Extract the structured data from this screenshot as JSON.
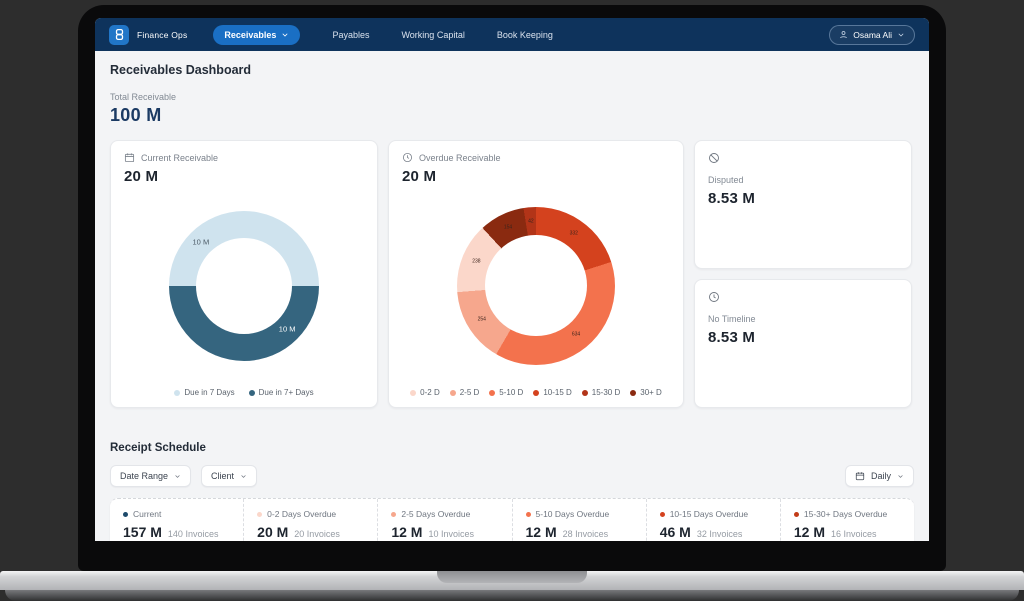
{
  "theme": {
    "nav-bg": "#0e335c",
    "accent-blue": "#1a6fc4",
    "logo-blue": "#2176c7",
    "content-bg": "#f3f4f6",
    "card-border": "#e7e9ec",
    "text-navy": "#1b3a63",
    "text-gray": "#828a94"
  },
  "nav": {
    "brand": "Finance Ops",
    "tabs": [
      {
        "label": "Receivables",
        "active": true
      },
      {
        "label": "Payables",
        "active": false
      },
      {
        "label": "Working Capital",
        "active": false
      },
      {
        "label": "Book Keeping",
        "active": false
      }
    ],
    "user": {
      "name": "Osama Ali"
    }
  },
  "header": {
    "title": "Receivables Dashboard"
  },
  "summary": {
    "label": "Total Receivable",
    "value": "100 M"
  },
  "cards": {
    "current": {
      "title": "Current Receivable",
      "value": "20 M"
    },
    "overdue": {
      "title": "Overdue Receivable",
      "value": "20 M"
    },
    "disputed": {
      "title": "Disputed",
      "value": "8.53 M"
    },
    "no_timeline": {
      "title": "No Timeline",
      "value": "8.53 M"
    }
  },
  "chart_data": [
    {
      "type": "pie",
      "title": "Current Receivable",
      "donut": true,
      "total_label": "20 M",
      "segments": [
        {
          "label": "Due in 7 Days",
          "value": 10,
          "value_label": "10 M",
          "color": "#cfe3ee"
        },
        {
          "label": "Due in 7+ Days",
          "value": 10,
          "value_label": "10 M",
          "color": "#35657f"
        }
      ],
      "legend_position": "bottom"
    },
    {
      "type": "pie",
      "title": "Overdue Receivable",
      "donut": true,
      "total_label": "20 M",
      "segments_order": "clockwise-from-top",
      "segments": [
        {
          "label": "10-15 D",
          "value": 332,
          "color": "#d4421e"
        },
        {
          "label": "5-10 D",
          "value": 634,
          "color": "#f3724d"
        },
        {
          "label": "2-5 D",
          "value": 254,
          "color": "#f6a78d"
        },
        {
          "label": "0-2 D",
          "value": 238,
          "color": "#fbd7ca"
        },
        {
          "label": "30+ D",
          "value": 154,
          "color": "#8a2a10"
        },
        {
          "label": "15-30 D",
          "value": 42,
          "color": "#b23418"
        }
      ],
      "legend": [
        {
          "label": "0-2 D",
          "color": "#fbd7ca"
        },
        {
          "label": "2-5 D",
          "color": "#f6a78d"
        },
        {
          "label": "5-10 D",
          "color": "#f3724d"
        },
        {
          "label": "10-15 D",
          "color": "#d4421e"
        },
        {
          "label": "15-30 D",
          "color": "#b23418"
        },
        {
          "label": "30+ D",
          "color": "#8a2a10"
        }
      ],
      "legend_position": "bottom"
    }
  ],
  "receipt_schedule": {
    "title": "Receipt Schedule",
    "filters": [
      {
        "label": "Date Range"
      },
      {
        "label": "Client"
      }
    ],
    "period_select": "Daily",
    "stats": [
      {
        "label": "Current",
        "value": "157 M",
        "invoices": "140 Invoices",
        "color": "#1d4a6b"
      },
      {
        "label": "0-2 Days Overdue",
        "value": "20 M",
        "invoices": "20 Invoices",
        "color": "#fbd7ca"
      },
      {
        "label": "2-5 Days Overdue",
        "value": "12 M",
        "invoices": "10 Invoices",
        "color": "#f6a78d"
      },
      {
        "label": "5-10 Days Overdue",
        "value": "12 M",
        "invoices": "28 Invoices",
        "color": "#f3724d"
      },
      {
        "label": "10-15 Days Overdue",
        "value": "46 M",
        "invoices": "32 Invoices",
        "color": "#d4421e"
      },
      {
        "label": "15-30+ Days Overdue",
        "value": "12 M",
        "invoices": "16 Invoices",
        "color": "#c23c18"
      }
    ]
  }
}
